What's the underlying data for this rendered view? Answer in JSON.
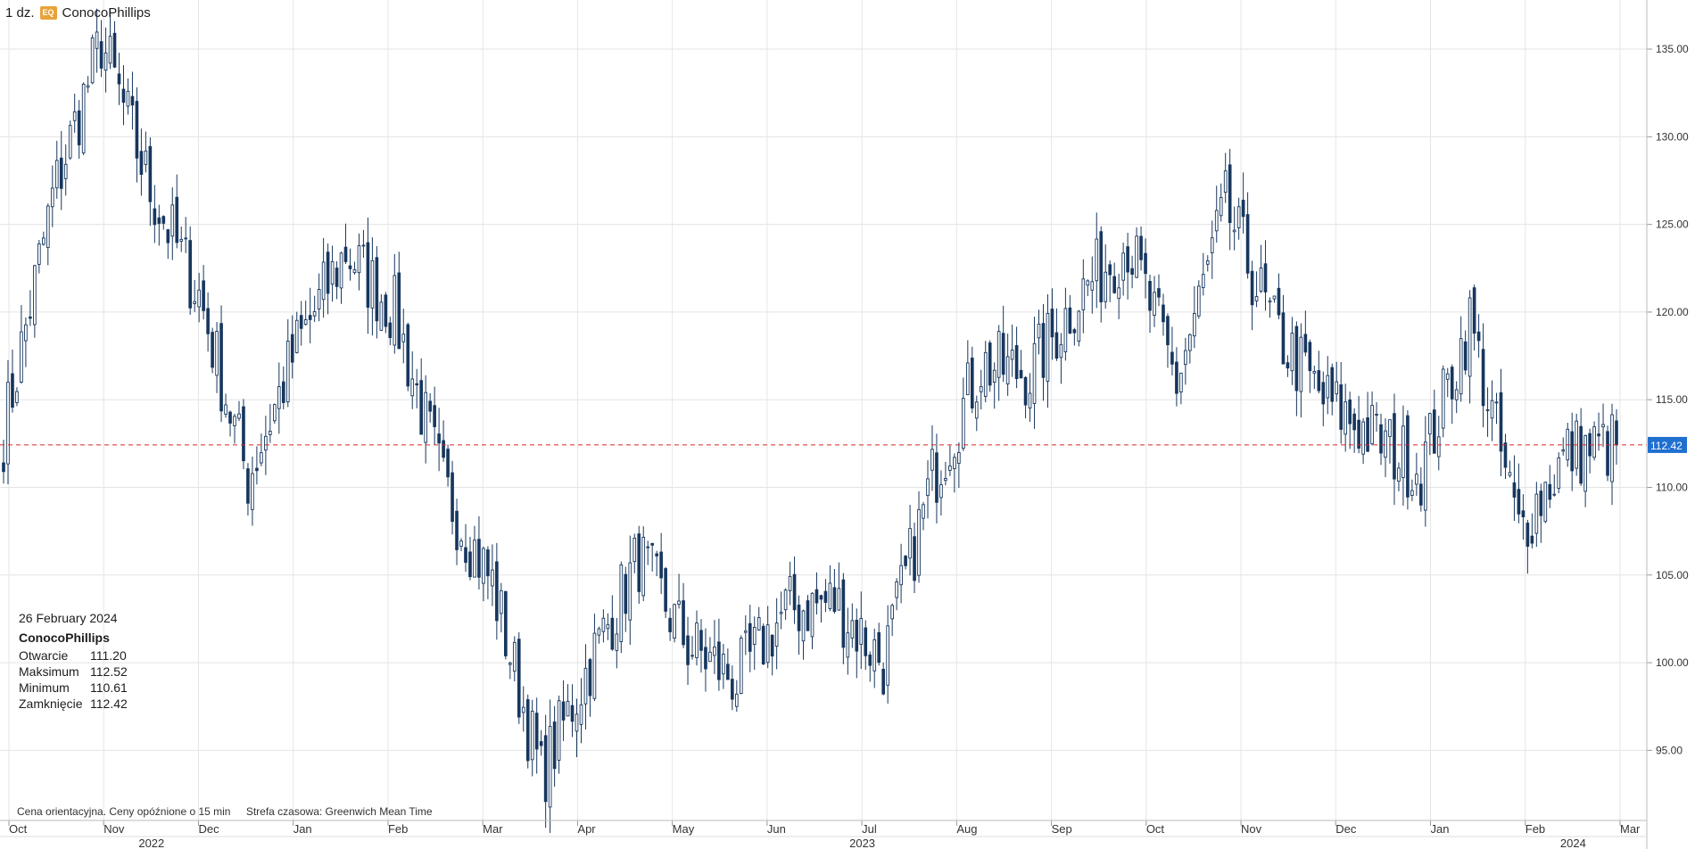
{
  "header": {
    "period": "1 dz.",
    "badge": "EQ",
    "name": "ConocoPhillips"
  },
  "info": {
    "date": "26 February 2024",
    "name": "ConocoPhillips",
    "rows": [
      {
        "label": "Otwarcie",
        "value": "111.20"
      },
      {
        "label": "Maksimum",
        "value": "112.52"
      },
      {
        "label": "Minimum",
        "value": "110.61"
      },
      {
        "label": "Zamknięcie",
        "value": "112.42"
      }
    ]
  },
  "footer": {
    "note": "Cena orientacyjna. Ceny opóźnione o 15 min",
    "timezone": "Strefa czasowa: Greenwich Mean Time"
  },
  "colors": {
    "down": "#17375e",
    "up_fill": "#ffffff",
    "line": "#d62728",
    "badge": "#e8a33a",
    "price_tag": "#1f6fd1"
  },
  "chart_data": {
    "type": "candlestick",
    "ylim": [
      91,
      137.8
    ],
    "yticks": [
      "135.00",
      "130.00",
      "125.00",
      "120.00",
      "115.00",
      "110.00",
      "105.00",
      "100.00",
      "95.00"
    ],
    "last_price": "112.42",
    "months": [
      "Oct",
      "Nov",
      "Dec",
      "Jan",
      "Feb",
      "Mar",
      "Apr",
      "May",
      "Jun",
      "Jul",
      "Aug",
      "Sep",
      "Oct",
      "Nov",
      "Dec",
      "Jan",
      "Feb",
      "Mar"
    ],
    "years": [
      "2022",
      "2023",
      "2024"
    ],
    "series": [
      {
        "month": "Oct",
        "close": 113.0
      },
      {
        "month": "Oct",
        "close": 126.5
      },
      {
        "month": "Nov",
        "close": 135.5
      },
      {
        "month": "Nov",
        "close": 127.0
      },
      {
        "month": "Dec",
        "close": 121.0
      },
      {
        "month": "Dec",
        "close": 110.5
      },
      {
        "month": "Jan",
        "close": 118.0
      },
      {
        "month": "Jan",
        "close": 123.5
      },
      {
        "month": "Feb",
        "close": 120.0
      },
      {
        "month": "Feb",
        "close": 110.0
      },
      {
        "month": "Mar",
        "close": 104.5
      },
      {
        "month": "Mar",
        "close": 93.5
      },
      {
        "month": "Apr",
        "close": 100.0
      },
      {
        "month": "Apr",
        "close": 106.0
      },
      {
        "month": "May",
        "close": 101.0
      },
      {
        "month": "May",
        "close": 99.0
      },
      {
        "month": "Jun",
        "close": 103.0
      },
      {
        "month": "Jun",
        "close": 103.5
      },
      {
        "month": "Jul",
        "close": 100.0
      },
      {
        "month": "Jul",
        "close": 110.5
      },
      {
        "month": "Aug",
        "close": 117.0
      },
      {
        "month": "Aug",
        "close": 116.5
      },
      {
        "month": "Sep",
        "close": 121.0
      },
      {
        "month": "Sep",
        "close": 124.0
      },
      {
        "month": "Oct",
        "close": 116.0
      },
      {
        "month": "Oct",
        "close": 126.0
      },
      {
        "month": "Nov",
        "close": 119.0
      },
      {
        "month": "Nov",
        "close": 115.0
      },
      {
        "month": "Dec",
        "close": 113.0
      },
      {
        "month": "Dec",
        "close": 111.0
      },
      {
        "month": "Jan",
        "close": 119.5
      },
      {
        "month": "Jan",
        "close": 107.5
      },
      {
        "month": "Feb",
        "close": 112.0
      },
      {
        "month": "Feb",
        "close": 112.42
      }
    ]
  }
}
